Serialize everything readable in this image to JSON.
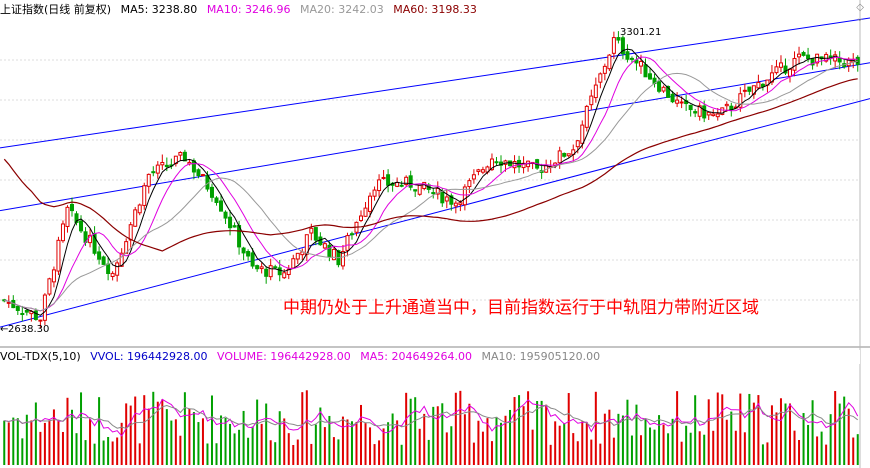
{
  "header": {
    "title": "上证指数(日线 前复权)",
    "ma": [
      {
        "label": "MA5: 3238.80",
        "color": "#000000"
      },
      {
        "label": "MA10: 3246.96",
        "color": "#e000e0"
      },
      {
        "label": "MA20: 3242.03",
        "color": "#999999"
      },
      {
        "label": "MA60: 3198.33",
        "color": "#8b0000"
      }
    ]
  },
  "annotation": {
    "text": "中期仍处于上升通道当中，目前指数运行于中轨阻力带附近区域",
    "color": "#ff0000"
  },
  "price_labels": {
    "high": "3301.21",
    "low": "2638.30"
  },
  "volume_header": {
    "name": "VOL-TDX(5,10)",
    "items": [
      {
        "label": "VVOL: 196442928.00",
        "color": "#0000c8"
      },
      {
        "label": "VOLUME: 196442928.00",
        "color": "#e000e0"
      },
      {
        "label": "MA5: 204649264.00",
        "color": "#e000e0"
      },
      {
        "label": "MA10: 195905120.00",
        "color": "#888888"
      }
    ]
  },
  "icons": {
    "top_right": "diamond-icon",
    "collapse": "chevron-icon"
  },
  "colors": {
    "up": "#e00000",
    "down": "#00a000",
    "channel": "#0000ff",
    "ma60": "#8b0000",
    "ma5": "#000000",
    "ma10": "#e000e0",
    "ma20": "#999999"
  },
  "chart_data": {
    "type": "candlestick",
    "price_range": [
      2600,
      3330
    ],
    "candles_count": 190,
    "candle_series_seed": 7,
    "key_prices": {
      "low": 2638.3,
      "high": 3301.21
    },
    "channel_lines": [
      {
        "name": "upper",
        "start": 3040,
        "end": 3330
      },
      {
        "name": "middle",
        "start": 2900,
        "end": 3230
      },
      {
        "name": "lower",
        "start": 2640,
        "end": 3150
      }
    ],
    "volume_range": [
      0,
      400000000
    ]
  }
}
